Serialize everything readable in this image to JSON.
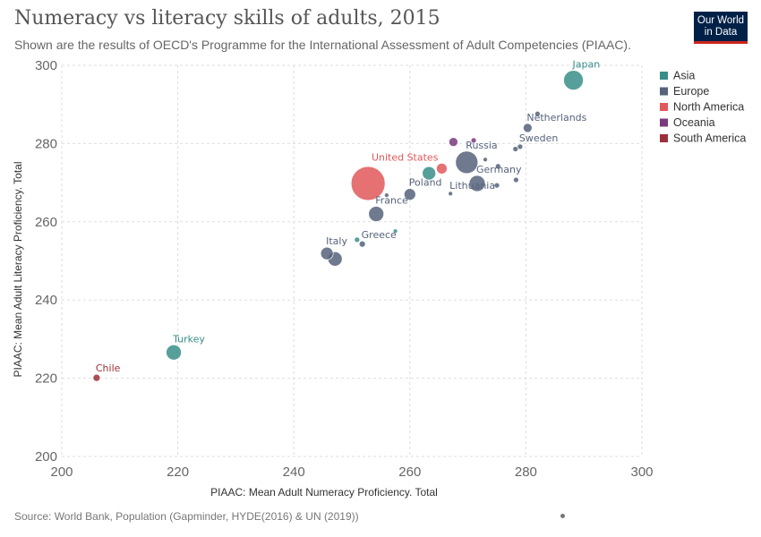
{
  "header": {
    "title": "Numeracy vs literacy skills of adults, 2015",
    "subtitle": "Shown are the results of OECD's Programme for the International Assessment of Adult Competencies (PIAAC).",
    "logo_line1": "Our World",
    "logo_line2": "in Data"
  },
  "footer": {
    "source": "Source: World Bank, Population (Gapminder, HYDE(2016) & UN (2019))"
  },
  "colors": {
    "Asia": "#3a8e89",
    "Europe": "#56637b",
    "North America": "#e0585b",
    "Oceania": "#7a3a7e",
    "South America": "#9c3039"
  },
  "chart_data": {
    "type": "scatter",
    "xlabel": "PIAAC: Mean Adult Numeracy Proficiency. Total",
    "ylabel": "PIAAC: Mean Adult Literacy Proficiency. Total",
    "xlim": [
      200,
      300
    ],
    "ylim": [
      200,
      300
    ],
    "xticks": [
      200,
      220,
      240,
      260,
      280,
      300
    ],
    "yticks": [
      200,
      220,
      240,
      260,
      280,
      300
    ],
    "grid": true,
    "legend_position": "right",
    "legend": [
      "Asia",
      "Europe",
      "North America",
      "Oceania",
      "South America"
    ],
    "points": [
      {
        "label": "Japan",
        "x": 288.2,
        "y": 296.2,
        "size": 11,
        "region": "Asia"
      },
      {
        "label": "",
        "x": 282.0,
        "y": 287.6,
        "size": 3,
        "region": "Europe"
      },
      {
        "label": "Netherlands",
        "x": 280.3,
        "y": 284.0,
        "size": 5,
        "region": "Europe"
      },
      {
        "label": "Sweden",
        "x": 279.0,
        "y": 279.2,
        "size": 3,
        "region": "Europe"
      },
      {
        "label": "",
        "x": 278.2,
        "y": 278.6,
        "size": 3,
        "region": "Europe"
      },
      {
        "label": "",
        "x": 271.0,
        "y": 280.8,
        "size": 3,
        "region": "Oceania"
      },
      {
        "label": "",
        "x": 267.5,
        "y": 280.4,
        "size": 5,
        "region": "Oceania"
      },
      {
        "label": "Russia",
        "x": 269.8,
        "y": 275.2,
        "size": 12.5,
        "region": "Europe"
      },
      {
        "label": "",
        "x": 273.0,
        "y": 275.9,
        "size": 2.5,
        "region": "Europe"
      },
      {
        "label": "United States",
        "x": 265.5,
        "y": 273.6,
        "size": 6,
        "region": "North America"
      },
      {
        "label": "",
        "x": 252.8,
        "y": 269.8,
        "size": 19,
        "region": "North America"
      },
      {
        "label": "",
        "x": 263.3,
        "y": 272.4,
        "size": 7.5,
        "region": "Asia"
      },
      {
        "label": "",
        "x": 275.2,
        "y": 274.2,
        "size": 3,
        "region": "Europe"
      },
      {
        "label": "Germany",
        "x": 271.6,
        "y": 269.8,
        "size": 9,
        "region": "Europe"
      },
      {
        "label": "",
        "x": 275.0,
        "y": 269.3,
        "size": 3,
        "region": "Europe"
      },
      {
        "label": "",
        "x": 278.3,
        "y": 270.7,
        "size": 3,
        "region": "Europe"
      },
      {
        "label": "Lithuania",
        "x": 267.0,
        "y": 267.2,
        "size": 2.5,
        "region": "Europe"
      },
      {
        "label": "Poland",
        "x": 260.0,
        "y": 267.0,
        "size": 6.5,
        "region": "Europe"
      },
      {
        "label": "",
        "x": 256.0,
        "y": 266.8,
        "size": 2.5,
        "region": "Europe"
      },
      {
        "label": "France",
        "x": 254.2,
        "y": 262.0,
        "size": 8.5,
        "region": "Europe"
      },
      {
        "label": "",
        "x": 257.5,
        "y": 257.6,
        "size": 2.5,
        "region": "Asia"
      },
      {
        "label": "",
        "x": 250.9,
        "y": 255.4,
        "size": 3,
        "region": "Asia"
      },
      {
        "label": "Greece",
        "x": 251.8,
        "y": 254.3,
        "size": 3.5,
        "region": "Europe"
      },
      {
        "label": "Italy",
        "x": 245.7,
        "y": 251.9,
        "size": 7,
        "region": "Europe"
      },
      {
        "label": "",
        "x": 247.1,
        "y": 250.5,
        "size": 8,
        "region": "Europe"
      },
      {
        "label": "Turkey",
        "x": 219.3,
        "y": 226.6,
        "size": 8.5,
        "region": "Asia"
      },
      {
        "label": "Chile",
        "x": 206.0,
        "y": 220.1,
        "size": 4,
        "region": "South America"
      }
    ]
  }
}
